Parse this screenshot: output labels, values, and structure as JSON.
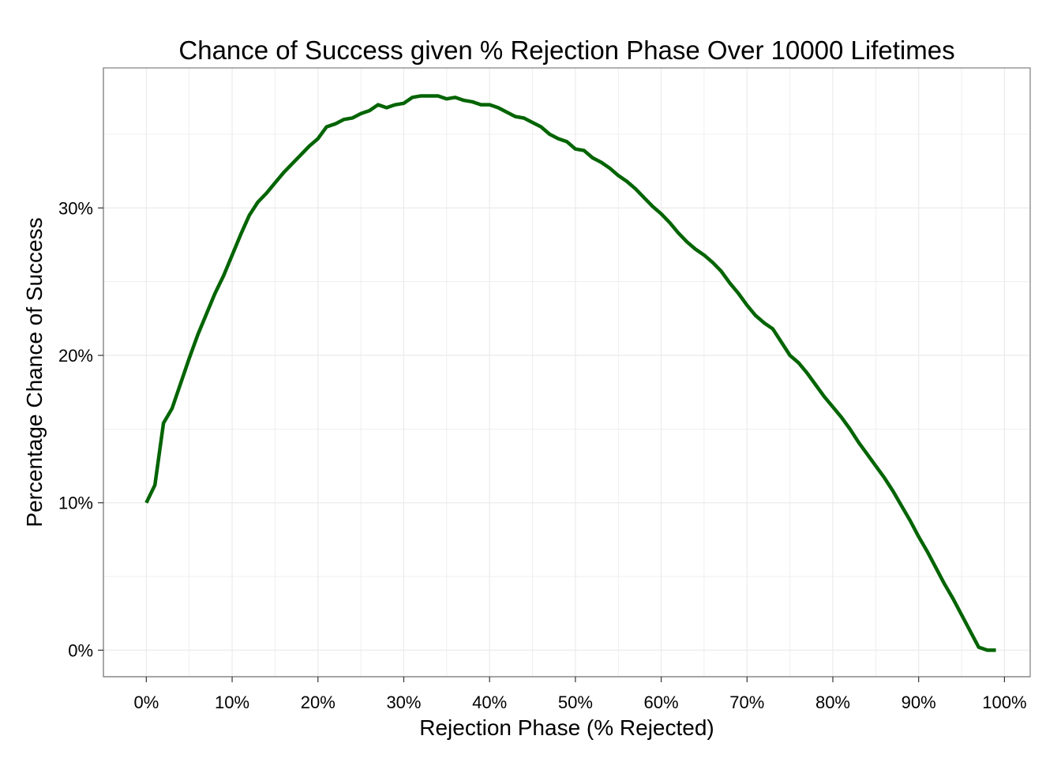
{
  "chart_data": {
    "type": "line",
    "title": "Chance of Success given % Rejection Phase Over 10000 Lifetimes",
    "xlabel": "Rejection Phase (% Rejected)",
    "ylabel": "Percentage Chance of Success",
    "xlim": [
      -0.05,
      1.03
    ],
    "ylim": [
      -0.018,
      0.395
    ],
    "x_ticks": [
      0,
      0.1,
      0.2,
      0.3,
      0.4,
      0.5,
      0.6,
      0.7,
      0.8,
      0.9,
      1.0
    ],
    "x_tick_labels": [
      "0%",
      "10%",
      "20%",
      "30%",
      "40%",
      "50%",
      "60%",
      "70%",
      "80%",
      "90%",
      "100%"
    ],
    "y_ticks": [
      0,
      0.1,
      0.2,
      0.3
    ],
    "y_tick_labels": [
      "0%",
      "10%",
      "20%",
      "30%"
    ],
    "grid": true,
    "line_color": "#006400",
    "grid_color": "#ebebeb",
    "series": [
      {
        "x": [
          0,
          0.01,
          0.02,
          0.03,
          0.04,
          0.05,
          0.06,
          0.07,
          0.08,
          0.09,
          0.1,
          0.11,
          0.12,
          0.13,
          0.14,
          0.15,
          0.16,
          0.17,
          0.18,
          0.19,
          0.2,
          0.21,
          0.22,
          0.23,
          0.24,
          0.25,
          0.26,
          0.27,
          0.28,
          0.29,
          0.3,
          0.31,
          0.32,
          0.33,
          0.34,
          0.35,
          0.36,
          0.37,
          0.38,
          0.39,
          0.4,
          0.41,
          0.42,
          0.43,
          0.44,
          0.45,
          0.46,
          0.47,
          0.48,
          0.49,
          0.5,
          0.51,
          0.52,
          0.53,
          0.54,
          0.55,
          0.56,
          0.57,
          0.58,
          0.59,
          0.6,
          0.61,
          0.62,
          0.63,
          0.64,
          0.65,
          0.66,
          0.67,
          0.68,
          0.69,
          0.7,
          0.71,
          0.72,
          0.73,
          0.74,
          0.75,
          0.76,
          0.77,
          0.78,
          0.79,
          0.8,
          0.81,
          0.82,
          0.83,
          0.84,
          0.85,
          0.86,
          0.87,
          0.88,
          0.89,
          0.9,
          0.91,
          0.92,
          0.93,
          0.94,
          0.95,
          0.96,
          0.97,
          0.98,
          0.99
        ],
        "values": [
          0.1,
          0.112,
          0.154,
          0.164,
          0.181,
          0.198,
          0.214,
          0.228,
          0.242,
          0.254,
          0.268,
          0.282,
          0.295,
          0.304,
          0.31,
          0.317,
          0.324,
          0.33,
          0.336,
          0.342,
          0.347,
          0.355,
          0.357,
          0.36,
          0.361,
          0.364,
          0.366,
          0.37,
          0.368,
          0.37,
          0.371,
          0.375,
          0.376,
          0.376,
          0.376,
          0.374,
          0.375,
          0.373,
          0.372,
          0.37,
          0.37,
          0.368,
          0.365,
          0.362,
          0.361,
          0.358,
          0.355,
          0.35,
          0.347,
          0.345,
          0.34,
          0.339,
          0.334,
          0.331,
          0.327,
          0.322,
          0.318,
          0.313,
          0.307,
          0.301,
          0.296,
          0.29,
          0.283,
          0.277,
          0.272,
          0.268,
          0.263,
          0.257,
          0.249,
          0.242,
          0.234,
          0.227,
          0.222,
          0.218,
          0.209,
          0.2,
          0.195,
          0.188,
          0.18,
          0.172,
          0.165,
          0.158,
          0.15,
          0.141,
          0.133,
          0.125,
          0.117,
          0.108,
          0.098,
          0.088,
          0.077,
          0.067,
          0.056,
          0.045,
          0.035,
          0.024,
          0.013,
          0.002,
          0.0,
          0.0
        ]
      }
    ]
  }
}
